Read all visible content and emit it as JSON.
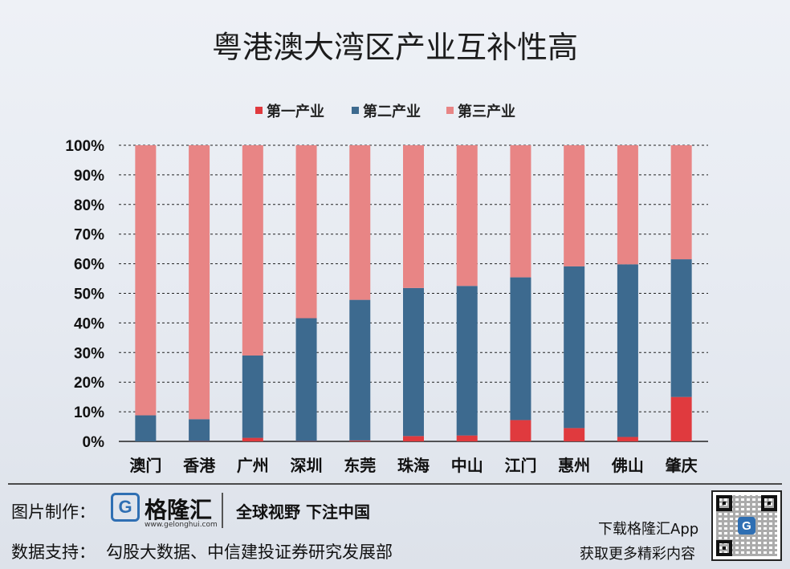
{
  "title": "粤港澳大湾区产业互补性高",
  "colors": {
    "primary": "#e03a3e",
    "secondary": "#3d6a8f",
    "tertiary": "#e88585",
    "grid": "#222222"
  },
  "chart_data": {
    "type": "bar",
    "stacked": true,
    "title": "粤港澳大湾区产业互补性高",
    "xlabel": "",
    "ylabel": "",
    "ylim": [
      0,
      100
    ],
    "yticks": [
      "0%",
      "10%",
      "20%",
      "30%",
      "40%",
      "50%",
      "60%",
      "70%",
      "80%",
      "90%",
      "100%"
    ],
    "grid": true,
    "legend_position": "top",
    "categories": [
      "澳门",
      "香港",
      "广州",
      "深圳",
      "东莞",
      "珠海",
      "中山",
      "江门",
      "惠州",
      "佛山",
      "肇庆"
    ],
    "series": [
      {
        "name": "第一产业",
        "color": "#e03a3e",
        "values": [
          0,
          0.1,
          1.2,
          0.1,
          0.3,
          1.8,
          2.0,
          7.2,
          4.5,
          1.5,
          15.0
        ]
      },
      {
        "name": "第二产业",
        "color": "#3d6a8f",
        "values": [
          8.8,
          7.4,
          27.8,
          41.5,
          47.5,
          50.0,
          50.5,
          48.2,
          54.6,
          58.3,
          46.5
        ]
      },
      {
        "name": "第三产业",
        "color": "#e88585",
        "values": [
          91.2,
          92.5,
          71.0,
          58.4,
          52.2,
          48.2,
          47.5,
          44.6,
          40.9,
          40.2,
          38.5
        ]
      }
    ]
  },
  "footer": {
    "made_by_label": "图片制作：",
    "logo_icon": "G",
    "logo_name": "格隆汇",
    "logo_url": "www.gelonghui.com",
    "slogan": "全球视野 下注中国",
    "support_label": "数据支持：",
    "support_sources": "勾股大数据、中信建投证券研究发展部",
    "download_app": "下载格隆汇App",
    "download_cta": "获取更多精彩内容",
    "qr_icon": "G"
  }
}
